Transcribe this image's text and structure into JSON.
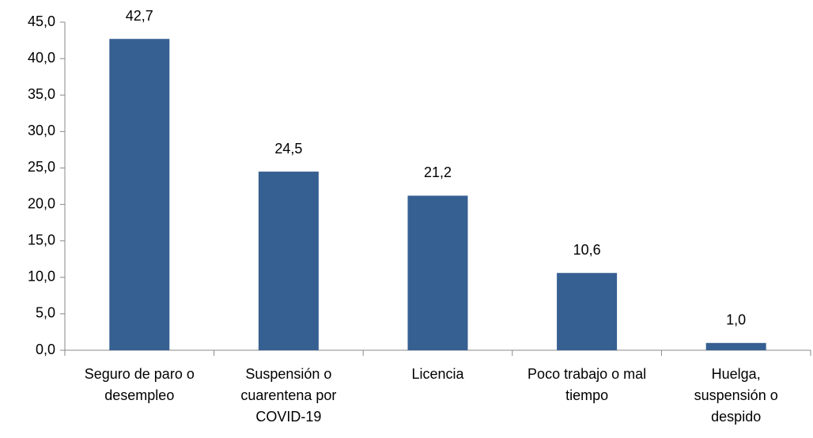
{
  "chart_data": {
    "type": "bar",
    "categories": [
      "Seguro de paro o desempleo",
      "Suspensión o cuarentena por COVID-19",
      "Licencia",
      "Poco trabajo o mal tiempo",
      "Huelga, suspensión o despido"
    ],
    "values": [
      42.7,
      24.5,
      21.2,
      10.6,
      1.0
    ],
    "value_labels": [
      "42,7",
      "24,5",
      "21,2",
      "10,6",
      "1,0"
    ],
    "color": "#376092",
    "ylim": [
      0,
      45
    ],
    "yticks": [
      {
        "value": 0,
        "label": "0,0"
      },
      {
        "value": 5,
        "label": "5,0"
      },
      {
        "value": 10,
        "label": "10,0"
      },
      {
        "value": 15,
        "label": "15,0"
      },
      {
        "value": 20,
        "label": "20,0"
      },
      {
        "value": 25,
        "label": "25,0"
      },
      {
        "value": 30,
        "label": "30,0"
      },
      {
        "value": 35,
        "label": "35,0"
      },
      {
        "value": 40,
        "label": "40,0"
      },
      {
        "value": 45,
        "label": "45,0"
      }
    ],
    "grid": false
  }
}
